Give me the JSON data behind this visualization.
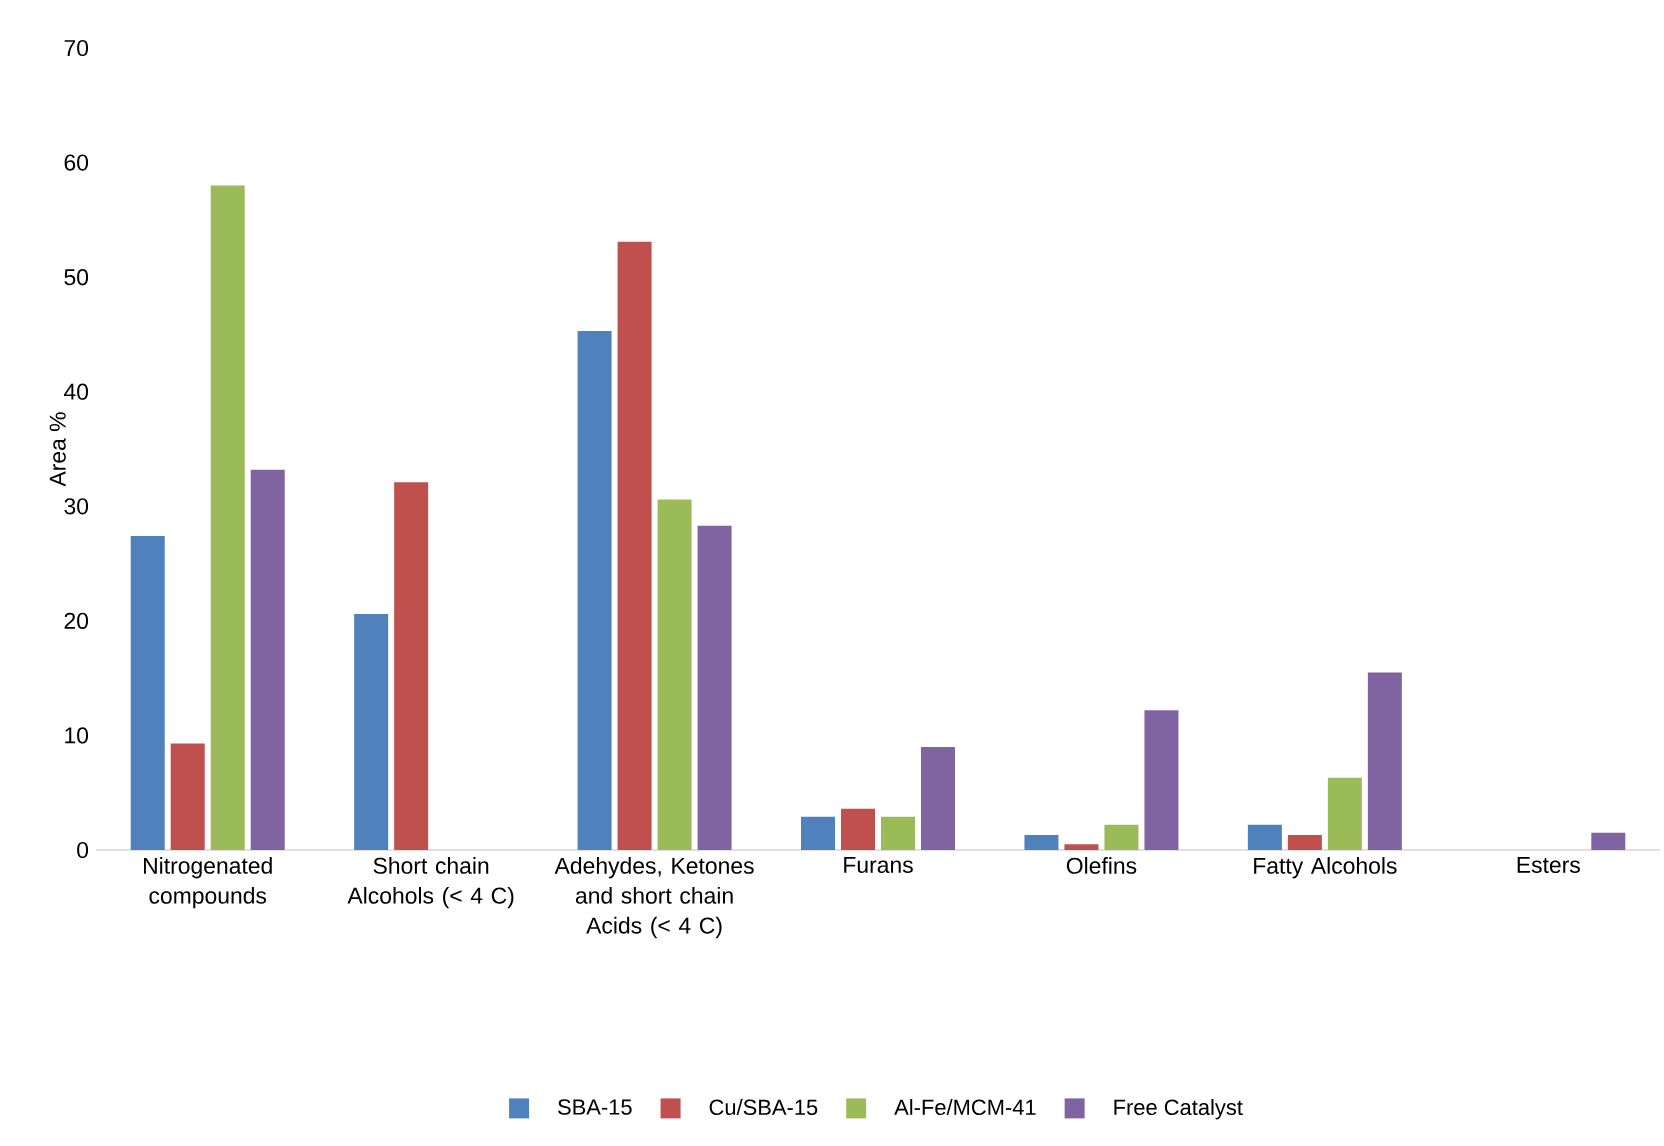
{
  "chart_data": {
    "type": "bar",
    "ylabel": "Area %",
    "categories": [
      "Nitrogenated compounds",
      "Short chain Alcohols (< 4 C)",
      "Adehydes, Ketones and short chain Acids (< 4 C)",
      "Furans",
      "Olefins",
      "Fatty Alcohols",
      "Esters"
    ],
    "series": [
      {
        "name": "SBA-15",
        "color": "#4f81bd",
        "values": [
          27.4,
          20.6,
          45.3,
          2.9,
          1.3,
          2.2,
          0
        ]
      },
      {
        "name": "Cu/SBA-15",
        "color": "#c0504d",
        "values": [
          9.3,
          32.1,
          53.1,
          3.6,
          0.5,
          1.3,
          0
        ]
      },
      {
        "name": "Al-Fe/MCM-41",
        "color": "#9bbb59",
        "values": [
          58,
          0,
          30.6,
          2.9,
          2.2,
          6.3,
          0
        ]
      },
      {
        "name": "Free Catalyst",
        "color": "#8064a2",
        "values": [
          33.2,
          0,
          28.3,
          9.0,
          12.2,
          15.5,
          1.5
        ]
      }
    ],
    "ylim": [
      0,
      70
    ],
    "yticks": [
      0,
      10,
      20,
      30,
      40,
      50,
      60,
      70
    ],
    "grid": false,
    "legend": "bottom"
  }
}
